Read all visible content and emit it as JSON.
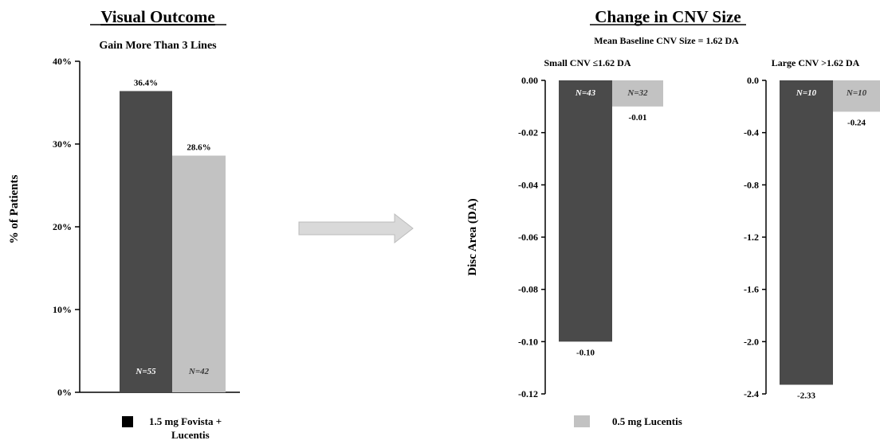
{
  "colors": {
    "fovista": "#4a4a4a",
    "lucentis": "#c2c2c2",
    "arrow": "#d7d7d7"
  },
  "left_panel": {
    "title": "Visual Outcome",
    "subtitle": "Gain More Than 3 Lines"
  },
  "right_panel": {
    "title": "Change in CNV Size",
    "subtitle": "Mean Baseline CNV Size = 1.62 DA"
  },
  "legend": [
    {
      "label": "1.5 mg Fovista + Lucentis",
      "color": "#4a4a4a"
    },
    {
      "label": "0.5 mg Lucentis",
      "color": "#c2c2c2"
    }
  ],
  "chart_data": [
    {
      "type": "bar",
      "title": "Visual Outcome",
      "subtitle": "Gain More Than 3 Lines",
      "ylabel": "% of Patients",
      "ylim": [
        0,
        40
      ],
      "yticks": [
        "0%",
        "10%",
        "20%",
        "30%",
        "40%"
      ],
      "ytick_values": [
        0,
        10,
        20,
        30,
        40
      ],
      "series": [
        {
          "name": "1.5 mg Fovista + Lucentis",
          "values": [
            36.4
          ],
          "value_labels": [
            "36.4%"
          ],
          "n_label": "N=55"
        },
        {
          "name": "0.5 mg Lucentis",
          "values": [
            28.6
          ],
          "value_labels": [
            "28.6%"
          ],
          "n_label": "N=42"
        }
      ]
    },
    {
      "type": "bar",
      "title": "Small CNV ≤1.62 DA",
      "ylabel": "Disc Area (DA)",
      "ylim": [
        -0.12,
        0
      ],
      "yticks": [
        "0.00",
        "-0.02",
        "-0.04",
        "-0.06",
        "-0.08",
        "-0.10",
        "-0.12"
      ],
      "ytick_values": [
        0,
        -0.02,
        -0.04,
        -0.06,
        -0.08,
        -0.1,
        -0.12
      ],
      "series": [
        {
          "name": "1.5 mg Fovista + Lucentis",
          "values": [
            -0.1
          ],
          "value_labels": [
            "-0.10"
          ],
          "n_label": "N=43"
        },
        {
          "name": "0.5 mg Lucentis",
          "values": [
            -0.01
          ],
          "value_labels": [
            "-0.01"
          ],
          "n_label": "N=32"
        }
      ]
    },
    {
      "type": "bar",
      "title": "Large CNV >1.62 DA",
      "ylim": [
        -2.4,
        0
      ],
      "yticks": [
        "0.0",
        "-0.4",
        "-0.8",
        "-1.2",
        "-1.6",
        "-2.0",
        "-2.4"
      ],
      "ytick_values": [
        0,
        -0.4,
        -0.8,
        -1.2,
        -1.6,
        -2.0,
        -2.4
      ],
      "series": [
        {
          "name": "1.5 mg Fovista + Lucentis",
          "values": [
            -2.33
          ],
          "value_labels": [
            "-2.33"
          ],
          "n_label": "N=10"
        },
        {
          "name": "0.5 mg Lucentis",
          "values": [
            -0.24
          ],
          "value_labels": [
            "-0.24"
          ],
          "n_label": "N=10"
        }
      ]
    }
  ]
}
